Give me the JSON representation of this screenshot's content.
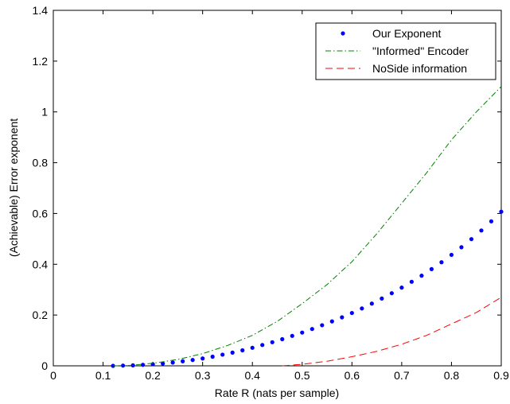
{
  "chart_data": {
    "type": "line",
    "title": "",
    "xlabel": "Rate R (nats per sample)",
    "ylabel": "(Achievable) Error exponent",
    "xlim": [
      0,
      0.9
    ],
    "ylim": [
      0,
      1.4
    ],
    "xticks": [
      "0",
      "0.1",
      "0.2",
      "0.3",
      "0.4",
      "0.5",
      "0.6",
      "0.7",
      "0.8",
      "0.9"
    ],
    "yticks": [
      "0",
      "0.2",
      "0.4",
      "0.6",
      "0.8",
      "1",
      "1.2",
      "1.4"
    ],
    "grid": false,
    "legend_position": "top-right",
    "series": [
      {
        "name": "Our Exponent",
        "style": "dots",
        "color": "#0000ff",
        "points": [
          [
            0.12,
            0.0
          ],
          [
            0.14,
            0.001
          ],
          [
            0.16,
            0.002
          ],
          [
            0.18,
            0.004
          ],
          [
            0.2,
            0.006
          ],
          [
            0.22,
            0.009
          ],
          [
            0.24,
            0.013
          ],
          [
            0.26,
            0.018
          ],
          [
            0.28,
            0.023
          ],
          [
            0.3,
            0.029
          ],
          [
            0.32,
            0.036
          ],
          [
            0.34,
            0.044
          ],
          [
            0.36,
            0.052
          ],
          [
            0.38,
            0.061
          ],
          [
            0.4,
            0.071
          ],
          [
            0.42,
            0.082
          ],
          [
            0.44,
            0.093
          ],
          [
            0.46,
            0.105
          ],
          [
            0.48,
            0.118
          ],
          [
            0.5,
            0.131
          ],
          [
            0.52,
            0.145
          ],
          [
            0.54,
            0.16
          ],
          [
            0.56,
            0.175
          ],
          [
            0.58,
            0.191
          ],
          [
            0.6,
            0.208
          ],
          [
            0.62,
            0.226
          ],
          [
            0.64,
            0.245
          ],
          [
            0.66,
            0.265
          ],
          [
            0.68,
            0.286
          ],
          [
            0.7,
            0.308
          ],
          [
            0.72,
            0.331
          ],
          [
            0.74,
            0.355
          ],
          [
            0.76,
            0.381
          ],
          [
            0.78,
            0.408
          ],
          [
            0.8,
            0.437
          ],
          [
            0.82,
            0.467
          ],
          [
            0.84,
            0.499
          ],
          [
            0.86,
            0.533
          ],
          [
            0.88,
            0.569
          ],
          [
            0.9,
            0.607
          ]
        ]
      },
      {
        "name": "\"Informed\" Encoder",
        "style": "dashdot",
        "color": "#008000",
        "points": [
          [
            0.12,
            0.0
          ],
          [
            0.15,
            0.001
          ],
          [
            0.2,
            0.01
          ],
          [
            0.25,
            0.025
          ],
          [
            0.3,
            0.048
          ],
          [
            0.35,
            0.08
          ],
          [
            0.4,
            0.12
          ],
          [
            0.45,
            0.175
          ],
          [
            0.5,
            0.245
          ],
          [
            0.55,
            0.32
          ],
          [
            0.6,
            0.41
          ],
          [
            0.65,
            0.52
          ],
          [
            0.7,
            0.64
          ],
          [
            0.75,
            0.76
          ],
          [
            0.8,
            0.89
          ],
          [
            0.85,
            1.0
          ],
          [
            0.9,
            1.1
          ]
        ]
      },
      {
        "name": "NoSide information",
        "style": "dashed",
        "color": "#ff0000",
        "points": [
          [
            0.46,
            0.0
          ],
          [
            0.5,
            0.006
          ],
          [
            0.55,
            0.018
          ],
          [
            0.6,
            0.036
          ],
          [
            0.65,
            0.057
          ],
          [
            0.7,
            0.085
          ],
          [
            0.75,
            0.12
          ],
          [
            0.8,
            0.165
          ],
          [
            0.85,
            0.21
          ],
          [
            0.9,
            0.27
          ]
        ]
      }
    ]
  }
}
